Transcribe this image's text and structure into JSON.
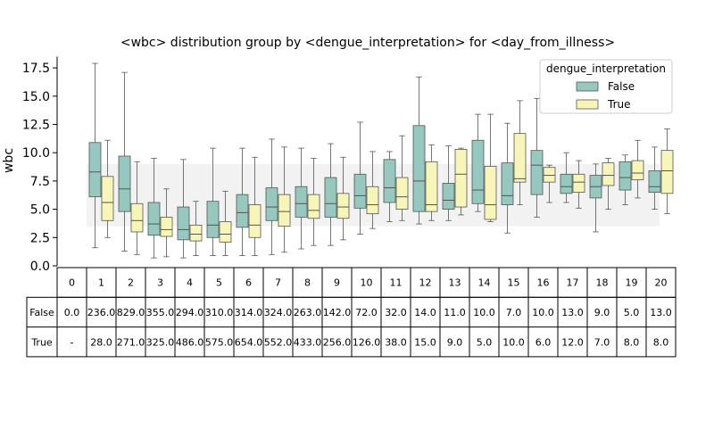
{
  "chart_data": {
    "type": "boxplot",
    "title": "<wbc> distribution group by <dengue_interpretation> for <day_from_illness>",
    "xlabel": "",
    "ylabel": "wbc",
    "ylim": [
      0,
      18.5
    ],
    "yticks": [
      "0.0",
      "2.5",
      "5.0",
      "7.5",
      "10.0",
      "12.5",
      "15.0",
      "17.5"
    ],
    "grid": false,
    "legend": {
      "title": "dengue_interpretation",
      "placement": "top-right",
      "entries": [
        {
          "label": "False",
          "color": "#96c8bf"
        },
        {
          "label": "True",
          "color": "#f7f6b8"
        }
      ]
    },
    "reference_band": {
      "y_low": 3.5,
      "y_high": 9.0,
      "color": "#f2f2f2"
    },
    "categories": [
      "0",
      "1",
      "2",
      "3",
      "4",
      "5",
      "6",
      "7",
      "8",
      "9",
      "10",
      "11",
      "12",
      "13",
      "14",
      "15",
      "16",
      "17",
      "18",
      "19",
      "20"
    ],
    "series": [
      {
        "name": "False",
        "color": "#96c8bf",
        "boxes": [
          null,
          {
            "whislo": 1.6,
            "q1": 6.1,
            "med": 8.3,
            "q3": 10.9,
            "whishi": 17.9
          },
          {
            "whislo": 1.3,
            "q1": 4.8,
            "med": 6.8,
            "q3": 9.7,
            "whishi": 17.1
          },
          {
            "whislo": 0.7,
            "q1": 2.7,
            "med": 3.7,
            "q3": 5.6,
            "whishi": 9.5
          },
          {
            "whislo": 0.7,
            "q1": 2.3,
            "med": 3.2,
            "q3": 5.2,
            "whishi": 9.4
          },
          {
            "whislo": 0.9,
            "q1": 2.5,
            "med": 3.6,
            "q3": 5.7,
            "whishi": 10.4
          },
          {
            "whislo": 0.9,
            "q1": 3.4,
            "med": 4.7,
            "q3": 6.3,
            "whishi": 10.4
          },
          {
            "whislo": 1.0,
            "q1": 4.0,
            "med": 5.2,
            "q3": 6.9,
            "whishi": 11.2
          },
          {
            "whislo": 1.5,
            "q1": 4.3,
            "med": 5.5,
            "q3": 7.0,
            "whishi": 10.4
          },
          {
            "whislo": 1.8,
            "q1": 4.3,
            "med": 5.5,
            "q3": 7.8,
            "whishi": 10.8
          },
          {
            "whislo": 2.8,
            "q1": 5.1,
            "med": 6.2,
            "q3": 8.1,
            "whishi": 12.7
          },
          {
            "whislo": 3.9,
            "q1": 5.6,
            "med": 6.9,
            "q3": 9.4,
            "whishi": 10.1
          },
          {
            "whislo": 3.7,
            "q1": 4.8,
            "med": 7.5,
            "q3": 12.4,
            "whishi": 16.7
          },
          {
            "whislo": 4.0,
            "q1": 5.0,
            "med": 5.8,
            "q3": 7.3,
            "whishi": 10.6
          },
          {
            "whislo": 4.8,
            "q1": 5.5,
            "med": 6.7,
            "q3": 11.1,
            "whishi": 13.4
          },
          {
            "whislo": 2.9,
            "q1": 5.4,
            "med": 6.2,
            "q3": 9.1,
            "whishi": 12.6
          },
          {
            "whislo": 4.3,
            "q1": 6.3,
            "med": 8.9,
            "q3": 10.2,
            "whishi": 14.8
          },
          {
            "whislo": 5.6,
            "q1": 6.4,
            "med": 7.0,
            "q3": 8.1,
            "whishi": 10.0
          },
          {
            "whislo": 3.0,
            "q1": 6.0,
            "med": 7.0,
            "q3": 8.0,
            "whishi": 9.0
          },
          {
            "whislo": 5.4,
            "q1": 6.7,
            "med": 7.8,
            "q3": 9.2,
            "whishi": 9.8
          },
          {
            "whislo": 5.0,
            "q1": 6.5,
            "med": 7.0,
            "q3": 8.4,
            "whishi": 10.5
          }
        ]
      },
      {
        "name": "True",
        "color": "#f7f6b8",
        "boxes": [
          null,
          {
            "whislo": 2.5,
            "q1": 4.0,
            "med": 5.6,
            "q3": 7.9,
            "whishi": 11.1
          },
          {
            "whislo": 1.0,
            "q1": 3.0,
            "med": 4.0,
            "q3": 5.5,
            "whishi": 9.2
          },
          {
            "whislo": 0.8,
            "q1": 2.6,
            "med": 3.2,
            "q3": 4.3,
            "whishi": 6.8
          },
          {
            "whislo": 0.9,
            "q1": 2.2,
            "med": 2.8,
            "q3": 3.6,
            "whishi": 5.7
          },
          {
            "whislo": 0.9,
            "q1": 2.1,
            "med": 2.8,
            "q3": 3.9,
            "whishi": 6.6
          },
          {
            "whislo": 0.9,
            "q1": 2.5,
            "med": 3.6,
            "q3": 5.4,
            "whishi": 9.6
          },
          {
            "whislo": 1.2,
            "q1": 3.5,
            "med": 4.8,
            "q3": 6.3,
            "whishi": 10.5
          },
          {
            "whislo": 1.8,
            "q1": 4.2,
            "med": 4.9,
            "q3": 6.3,
            "whishi": 9.5
          },
          {
            "whislo": 2.3,
            "q1": 4.2,
            "med": 5.2,
            "q3": 6.4,
            "whishi": 9.6
          },
          {
            "whislo": 3.3,
            "q1": 4.6,
            "med": 5.4,
            "q3": 7.0,
            "whishi": 10.1
          },
          {
            "whislo": 4.0,
            "q1": 5.0,
            "med": 6.1,
            "q3": 7.8,
            "whishi": 11.5
          },
          {
            "whislo": 4.0,
            "q1": 4.8,
            "med": 5.4,
            "q3": 9.2,
            "whishi": 10.7
          },
          {
            "whislo": 4.5,
            "q1": 5.2,
            "med": 8.1,
            "q3": 10.3,
            "whishi": 10.4
          },
          {
            "whislo": 3.9,
            "q1": 4.1,
            "med": 5.4,
            "q3": 8.8,
            "whishi": 13.4
          },
          {
            "whislo": 5.4,
            "q1": 7.4,
            "med": 7.7,
            "q3": 11.7,
            "whishi": 14.6
          },
          {
            "whislo": 5.6,
            "q1": 7.4,
            "med": 8.0,
            "q3": 8.7,
            "whishi": 8.9
          },
          {
            "whislo": 5.1,
            "q1": 6.5,
            "med": 7.4,
            "q3": 8.1,
            "whishi": 9.3
          },
          {
            "whislo": 5.0,
            "q1": 7.1,
            "med": 8.0,
            "q3": 9.1,
            "whishi": 9.5
          },
          {
            "whislo": 6.0,
            "q1": 7.6,
            "med": 8.2,
            "q3": 9.3,
            "whishi": 11.1
          },
          {
            "whislo": 4.6,
            "q1": 6.4,
            "med": 8.4,
            "q3": 10.2,
            "whishi": 12.1
          }
        ]
      }
    ],
    "table": {
      "col_headers": [
        "0",
        "1",
        "2",
        "3",
        "4",
        "5",
        "6",
        "7",
        "8",
        "9",
        "10",
        "11",
        "12",
        "13",
        "14",
        "15",
        "16",
        "17",
        "18",
        "19",
        "20"
      ],
      "rows": [
        {
          "label": "False",
          "cells": [
            "0.0",
            "236.0",
            "829.0",
            "355.0",
            "294.0",
            "310.0",
            "314.0",
            "324.0",
            "263.0",
            "142.0",
            "72.0",
            "32.0",
            "14.0",
            "11.0",
            "10.0",
            "7.0",
            "10.0",
            "13.0",
            "9.0",
            "5.0",
            "13.0"
          ]
        },
        {
          "label": "True",
          "cells": [
            "-",
            "28.0",
            "271.0",
            "325.0",
            "486.0",
            "575.0",
            "654.0",
            "552.0",
            "433.0",
            "256.0",
            "126.0",
            "38.0",
            "15.0",
            "9.0",
            "5.0",
            "10.0",
            "6.0",
            "12.0",
            "7.0",
            "8.0",
            "8.0"
          ]
        }
      ]
    }
  }
}
